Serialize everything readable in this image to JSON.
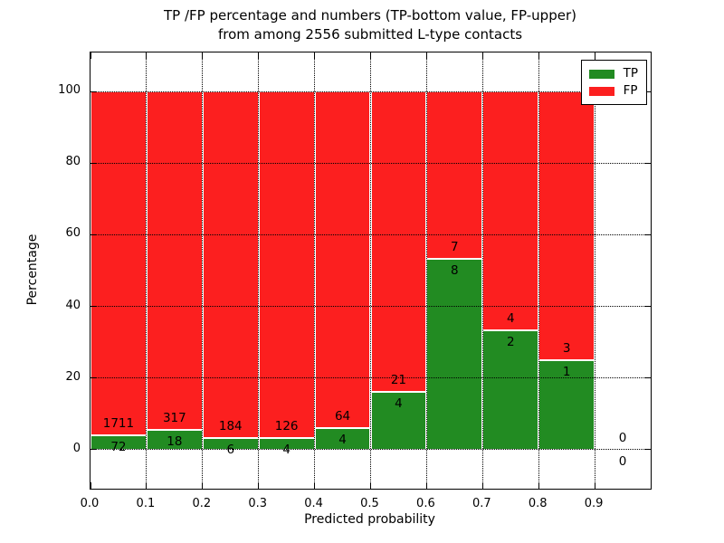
{
  "figure": {
    "title_line1": "TP /FP percentage and numbers (TP-bottom value, FP-upper)",
    "title_line2": "from among 2556 submitted L-type contacts",
    "xlabel": "Predicted probability",
    "ylabel": "Percentage"
  },
  "legend": {
    "items": [
      {
        "label": "TP",
        "color": "#228b22"
      },
      {
        "label": "FP",
        "color": "#fc1f1f"
      }
    ]
  },
  "chart_data": {
    "type": "bar",
    "stacked": true,
    "title": "TP /FP percentage and numbers (TP-bottom value, FP-upper)\nfrom among 2556 submitted L-type contacts",
    "xlabel": "Predicted probability",
    "ylabel": "Percentage",
    "total_contacts": 2556,
    "bin_width": 0.1,
    "bin_starts": [
      0.0,
      0.1,
      0.2,
      0.3,
      0.4,
      0.5,
      0.6,
      0.7,
      0.8,
      0.9
    ],
    "series": [
      {
        "name": "TP",
        "color": "#228b22",
        "counts": [
          72,
          18,
          6,
          4,
          4,
          4,
          8,
          2,
          1,
          0
        ]
      },
      {
        "name": "FP",
        "color": "#fc1f1f",
        "counts": [
          1711,
          317,
          184,
          126,
          64,
          21,
          7,
          4,
          3,
          0
        ]
      }
    ],
    "bar_height_mode": "percent_of_bin_total_stacked_to_100",
    "xticks": [
      0.0,
      0.1,
      0.2,
      0.3,
      0.4,
      0.5,
      0.6,
      0.7,
      0.8,
      0.9
    ],
    "yticks": [
      0,
      20,
      40,
      60,
      80,
      100
    ],
    "xlim": [
      0.0,
      1.0
    ],
    "ylim": [
      -11,
      111
    ],
    "grid": true,
    "grid_style": "dotted",
    "legend_position": "upper right"
  }
}
